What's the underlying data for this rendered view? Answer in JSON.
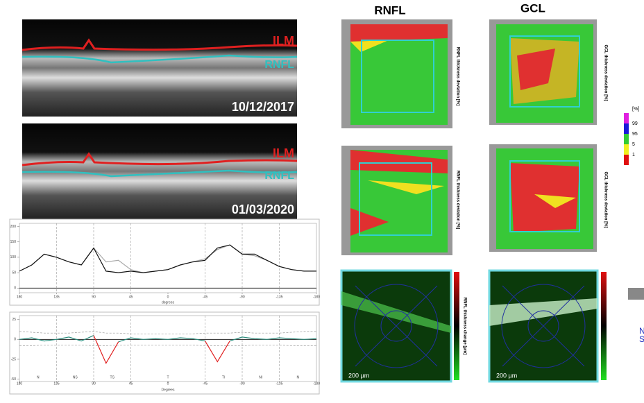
{
  "oct_scans": [
    {
      "labels": [
        "ILM",
        "RNFL"
      ],
      "date": "10/12/2017"
    },
    {
      "labels": [
        "ILM",
        "RNFL"
      ],
      "date": "01/03/2020"
    }
  ],
  "columns": [
    "RNFL",
    "GCL"
  ],
  "map_rows": [
    {
      "rnfl": "RNFL thickness deviation [%]",
      "gcl": "GCL thickness deviation [%]"
    },
    {
      "rnfl": "RNFL thickness deviation [%]",
      "gcl": "GCL thickness deviation [%]"
    },
    {
      "rnfl": "RNFL thickness change [µm]",
      "scale_bars": [
        "200 µm",
        "200 µm"
      ]
    }
  ],
  "legend": {
    "title": "[%]",
    "levels": [
      99,
      95,
      5,
      1
    ],
    "colors": [
      "#e020e0",
      "#1a1ad8",
      "#33cc33",
      "#f0f020",
      "#e01010"
    ]
  },
  "edge_text": [
    "N",
    "S"
  ],
  "chart_data": [
    {
      "type": "line",
      "xlabel": "degrees",
      "x": [
        180,
        165,
        150,
        135,
        120,
        105,
        90,
        75,
        60,
        45,
        30,
        15,
        0,
        -15,
        -30,
        -45,
        -60,
        -75,
        -90,
        -105,
        -120,
        -135,
        -150,
        -165,
        -180
      ],
      "xlim": [
        180,
        -180
      ],
      "xticks": [
        180,
        135,
        90,
        45,
        0,
        -45,
        -90,
        -135,
        -180
      ],
      "ylim": [
        -15,
        210
      ],
      "yticks": [
        0,
        50,
        100,
        150,
        200
      ],
      "dividers": [
        135,
        90,
        45,
        -45,
        -90,
        -135
      ],
      "series": [
        {
          "color": "#aaaaaa",
          "values": [
            55,
            75,
            110,
            100,
            85,
            75,
            130,
            85,
            90,
            60,
            50,
            55,
            60,
            75,
            85,
            95,
            125,
            140,
            110,
            105,
            90,
            70,
            60,
            55,
            55
          ]
        },
        {
          "color": "#111111",
          "values": [
            55,
            75,
            110,
            100,
            85,
            75,
            130,
            55,
            50,
            55,
            50,
            55,
            60,
            75,
            85,
            90,
            130,
            140,
            110,
            110,
            90,
            70,
            60,
            55,
            55
          ]
        }
      ]
    },
    {
      "type": "line",
      "xlabel": "Degrees",
      "x": [
        180,
        165,
        150,
        135,
        120,
        105,
        90,
        75,
        60,
        45,
        30,
        15,
        0,
        -15,
        -30,
        -45,
        -60,
        -75,
        -90,
        -105,
        -120,
        -135,
        -150,
        -165,
        -180
      ],
      "xlim": [
        180,
        -180
      ],
      "xticks": [
        180,
        135,
        90,
        45,
        0,
        -45,
        -90,
        -135,
        -180
      ],
      "ylim": [
        -53,
        30
      ],
      "yticks": [
        -50,
        -25,
        0,
        25
      ],
      "dividers": [
        135,
        90,
        45,
        -45,
        -90,
        -135
      ],
      "sectors": [
        "N",
        "NS",
        "TS",
        "T",
        "TI",
        "NI",
        "N"
      ],
      "series": [
        {
          "color": "#999999",
          "dash": true,
          "values": [
            10,
            9,
            8,
            8,
            8,
            9,
            10,
            8,
            8,
            7,
            7,
            7,
            7,
            7,
            7,
            8,
            8,
            8,
            9,
            8,
            8,
            8,
            9,
            10,
            10
          ]
        },
        {
          "color": "#999999",
          "dash": true,
          "values": [
            -8,
            -8,
            -7,
            -7,
            -7,
            -7,
            -8,
            -8,
            -7,
            -7,
            -7,
            -7,
            -7,
            -7,
            -7,
            -8,
            -8,
            -8,
            -8,
            -7,
            -7,
            -7,
            -8,
            -8,
            -8
          ]
        },
        {
          "color": "#2a8c7c",
          "values": [
            0,
            2,
            -2,
            0,
            3,
            -2,
            5,
            null,
            -3,
            2,
            0,
            1,
            0,
            2,
            1,
            -2,
            null,
            -2,
            3,
            1,
            0,
            2,
            1,
            0,
            1
          ]
        },
        {
          "color": "#e02020",
          "values": [
            null,
            null,
            null,
            null,
            null,
            null,
            5,
            -30,
            -3,
            null,
            null,
            null,
            null,
            null,
            null,
            -2,
            -28,
            -2,
            null,
            null,
            null,
            null,
            null,
            null,
            null
          ]
        }
      ]
    }
  ]
}
